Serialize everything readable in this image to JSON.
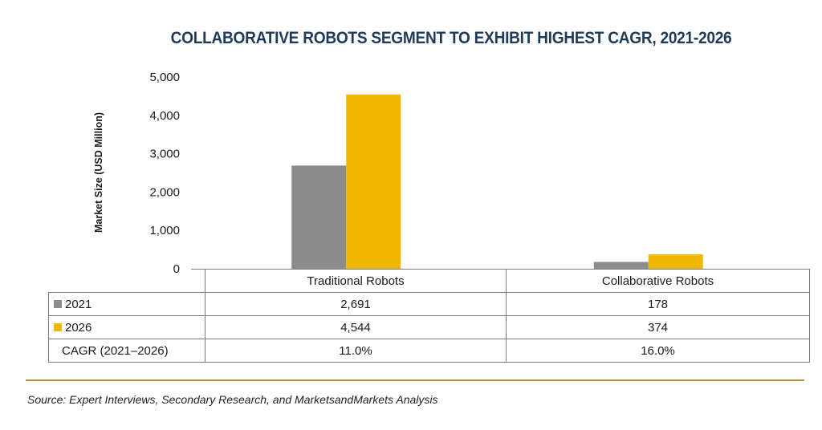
{
  "chart_data": {
    "type": "bar",
    "title": "COLLABORATIVE ROBOTS SEGMENT TO EXHIBIT HIGHEST CAGR, 2021-2026",
    "ylabel": "Market Size (USD Million)",
    "xlabel": "",
    "ylim": [
      0,
      5000
    ],
    "yticks": [
      "0",
      "1,000",
      "2,000",
      "3,000",
      "4,000",
      "5,000"
    ],
    "ytick_values": [
      0,
      1000,
      2000,
      3000,
      4000,
      5000
    ],
    "grid": false,
    "categories": [
      "Traditional Robots",
      "Collaborative Robots"
    ],
    "series": [
      {
        "name": "2021",
        "values": [
          2691,
          178
        ],
        "labels": [
          "2,691",
          "178"
        ],
        "color": "#8c8c8c"
      },
      {
        "name": "2026",
        "values": [
          4544,
          374
        ],
        "labels": [
          "4,544",
          "374"
        ],
        "color": "#f2b705"
      }
    ],
    "extra_rows": [
      {
        "name": "CAGR (2021–2026)",
        "labels": [
          "11.0%",
          "16.0%"
        ]
      }
    ]
  },
  "source": "Source: Expert Interviews, Secondary Research, and MarketsandMarkets Analysis",
  "colors": {
    "title": "#1f3b5a",
    "divider": "#b8952a"
  }
}
